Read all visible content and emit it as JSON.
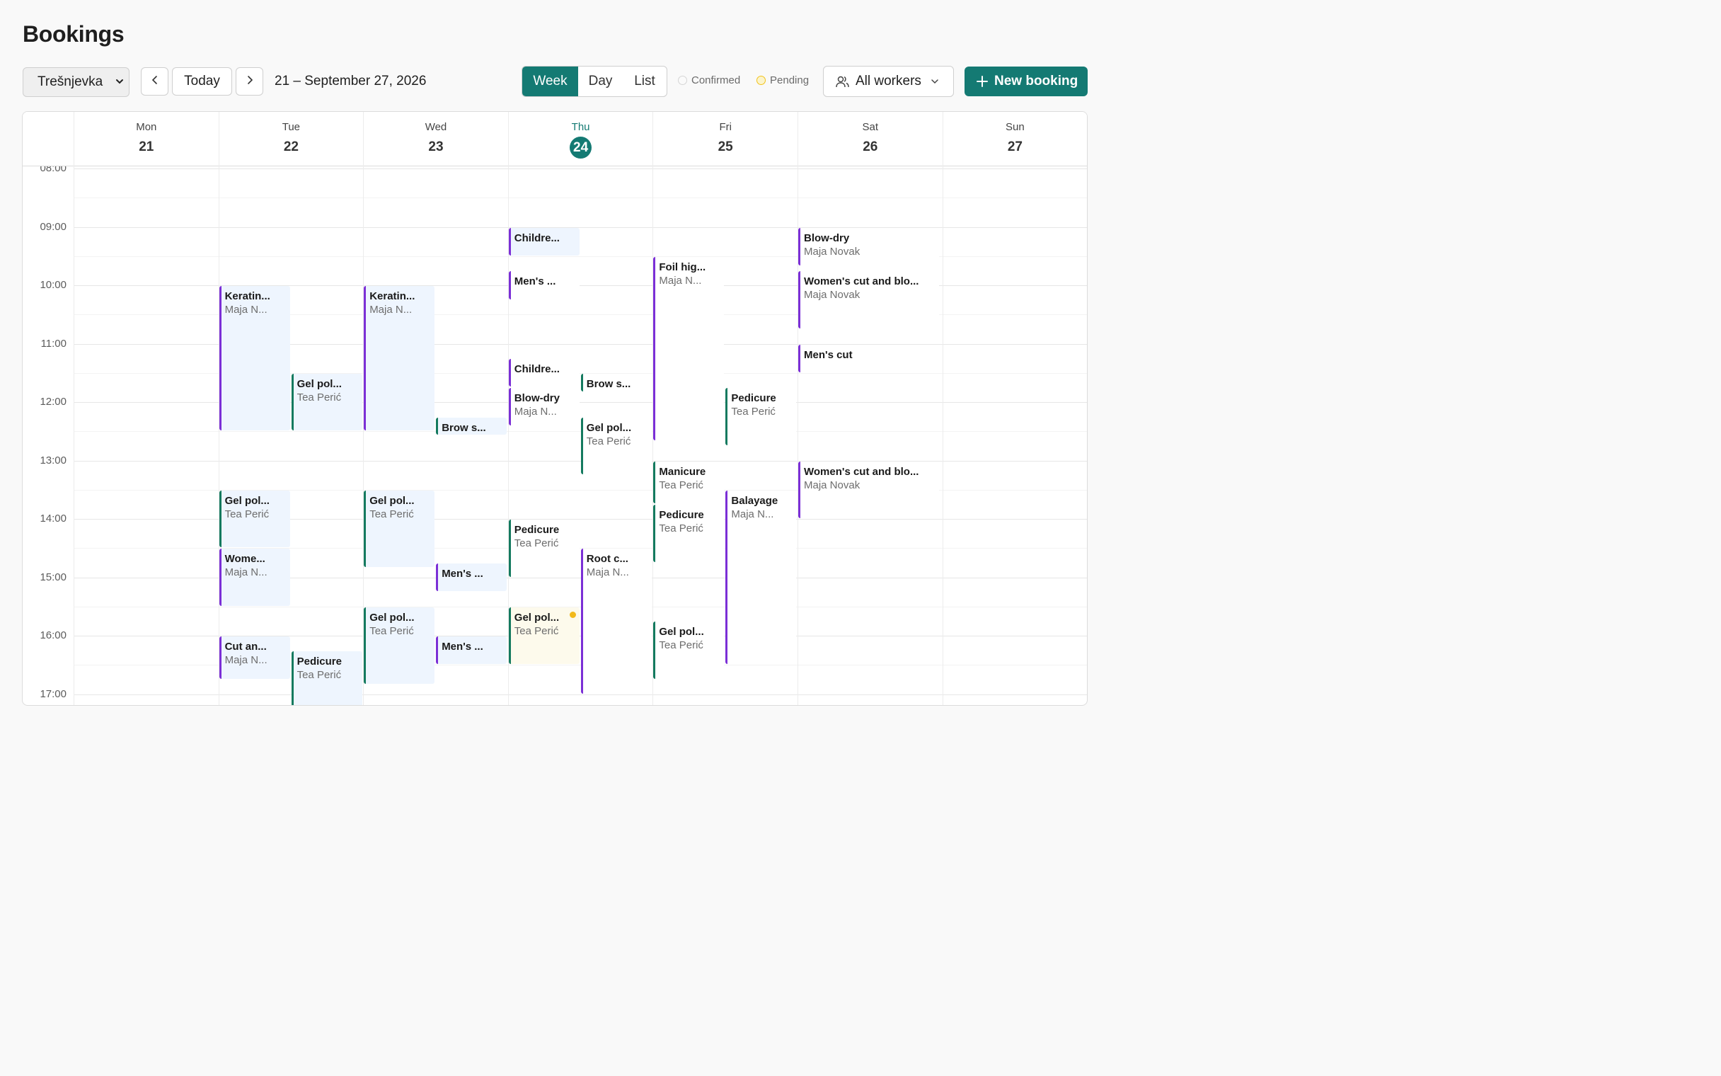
{
  "page": {
    "title": "Bookings"
  },
  "toolbar": {
    "location": "Trešnjevka",
    "today_label": "Today",
    "date_range": "21 – September 27, 2026",
    "views": [
      "Week",
      "Day",
      "List"
    ],
    "active_view": "Week",
    "legend": {
      "confirmed": "Confirmed",
      "pending": "Pending"
    },
    "workers_label": "All workers",
    "new_booking_label": "New booking",
    "accent_color": "#147a73",
    "pending_color": "#f2b91b"
  },
  "calendar": {
    "days": [
      {
        "name": "Mon",
        "num": "21"
      },
      {
        "name": "Tue",
        "num": "22"
      },
      {
        "name": "Wed",
        "num": "23"
      },
      {
        "name": "Thu",
        "num": "24",
        "today": true
      },
      {
        "name": "Fri",
        "num": "25"
      },
      {
        "name": "Sat",
        "num": "26"
      },
      {
        "name": "Sun",
        "num": "27"
      }
    ],
    "hours": [
      "08:00",
      "09:00",
      "10:00",
      "11:00",
      "12:00",
      "13:00",
      "14:00",
      "15:00",
      "16:00",
      "17:00"
    ],
    "worker_colors": {
      "Maja Novak": "#7b2fd6",
      "Tea Perić": "#147a5f"
    },
    "events": [
      {
        "day": 1,
        "start": "10:00",
        "end": "12:30",
        "col": 0,
        "title": "Keratin...",
        "worker": "Maja N...",
        "type": "maja"
      },
      {
        "day": 1,
        "start": "11:30",
        "end": "12:30",
        "col": 1,
        "title": "Gel pol...",
        "worker": "Tea Perić",
        "type": "tea"
      },
      {
        "day": 1,
        "start": "13:30",
        "end": "14:30",
        "col": 0,
        "title": "Gel pol...",
        "worker": "Tea Perić",
        "type": "tea"
      },
      {
        "day": 1,
        "start": "14:30",
        "end": "15:30",
        "col": 0,
        "title": "Wome...",
        "worker": "Maja N...",
        "type": "maja"
      },
      {
        "day": 1,
        "start": "16:00",
        "end": "16:45",
        "col": 0,
        "title": "Cut an...",
        "worker": "Maja N...",
        "type": "maja"
      },
      {
        "day": 1,
        "start": "16:15",
        "end": "17:15",
        "col": 1,
        "title": "Pedicure",
        "worker": "Tea Perić",
        "type": "tea"
      },
      {
        "day": 2,
        "start": "10:00",
        "end": "12:30",
        "col": 0,
        "title": "Keratin...",
        "worker": "Maja N...",
        "type": "maja"
      },
      {
        "day": 2,
        "start": "12:15",
        "end": "12:30",
        "col": 1,
        "title": "Brow s...",
        "worker": "",
        "type": "tea"
      },
      {
        "day": 2,
        "start": "13:30",
        "end": "14:50",
        "col": 0,
        "title": "Gel pol...",
        "worker": "Tea Perić",
        "type": "tea"
      },
      {
        "day": 2,
        "start": "14:45",
        "end": "15:15",
        "col": 1,
        "title": "Men's ...",
        "worker": "",
        "type": "maja"
      },
      {
        "day": 2,
        "start": "15:30",
        "end": "16:50",
        "col": 0,
        "title": "Gel pol...",
        "worker": "Tea Perić",
        "type": "tea"
      },
      {
        "day": 2,
        "start": "16:00",
        "end": "16:30",
        "col": 1,
        "title": "Men's ...",
        "worker": "",
        "type": "maja"
      },
      {
        "day": 3,
        "start": "09:00",
        "end": "09:30",
        "col": 0,
        "title": "Childre...",
        "worker": "",
        "type": "maja"
      },
      {
        "day": 3,
        "start": "09:45",
        "end": "10:15",
        "col": 0,
        "title": "Men's ...",
        "worker": "",
        "type": "maja",
        "white": true
      },
      {
        "day": 3,
        "start": "11:15",
        "end": "11:45",
        "col": 0,
        "title": "Childre...",
        "worker": "",
        "type": "maja",
        "white": true
      },
      {
        "day": 3,
        "start": "11:30",
        "end": "11:50",
        "col": 1,
        "title": "Brow s...",
        "worker": "",
        "type": "tea",
        "white": true
      },
      {
        "day": 3,
        "start": "11:45",
        "end": "12:25",
        "col": 0,
        "title": "Blow-dry",
        "worker": "Maja N...",
        "type": "maja",
        "white": true
      },
      {
        "day": 3,
        "start": "12:15",
        "end": "13:15",
        "col": 1,
        "title": "Gel pol...",
        "worker": "Tea Perić",
        "type": "tea",
        "white": true
      },
      {
        "day": 3,
        "start": "14:00",
        "end": "15:00",
        "col": 0,
        "title": "Pedicure",
        "worker": "Tea Perić",
        "type": "tea",
        "white": true
      },
      {
        "day": 3,
        "start": "14:30",
        "end": "17:00",
        "col": 1,
        "title": "Root c...",
        "worker": "Maja N...",
        "type": "maja",
        "white": true
      },
      {
        "day": 3,
        "start": "15:30",
        "end": "16:30",
        "col": 0,
        "title": "Gel pol...",
        "worker": "Tea Perić",
        "type": "tea",
        "pending": true
      },
      {
        "day": 4,
        "start": "09:30",
        "end": "12:40",
        "col": 0,
        "title": "Foil hig...",
        "worker": "Maja N...",
        "type": "maja",
        "white": true
      },
      {
        "day": 4,
        "start": "11:45",
        "end": "12:45",
        "col": 1,
        "title": "Pedicure",
        "worker": "Tea Perić",
        "type": "tea",
        "white": true
      },
      {
        "day": 4,
        "start": "13:00",
        "end": "13:45",
        "col": 0,
        "title": "Manicure",
        "worker": "Tea Perić",
        "type": "tea",
        "white": true
      },
      {
        "day": 4,
        "start": "13:30",
        "end": "16:30",
        "col": 1,
        "title": "Balayage",
        "worker": "Maja N...",
        "type": "maja",
        "white": true
      },
      {
        "day": 4,
        "start": "13:45",
        "end": "14:45",
        "col": 0,
        "title": "Pedicure",
        "worker": "Tea Perić",
        "type": "tea",
        "white": true
      },
      {
        "day": 4,
        "start": "15:45",
        "end": "16:45",
        "col": 0,
        "title": "Gel pol...",
        "worker": "Tea Perić",
        "type": "tea",
        "white": true
      },
      {
        "day": 5,
        "start": "09:00",
        "end": "09:40",
        "col": 0,
        "title": "Blow-dry",
        "worker": "Maja Novak",
        "type": "maja",
        "white": true,
        "wide": true
      },
      {
        "day": 5,
        "start": "09:45",
        "end": "10:45",
        "col": 0,
        "title": "Women's cut and blo...",
        "worker": "Maja Novak",
        "type": "maja",
        "white": true,
        "wide": true
      },
      {
        "day": 5,
        "start": "11:00",
        "end": "11:30",
        "col": 0,
        "title": "Men's cut",
        "worker": "",
        "type": "maja",
        "white": true,
        "wide": true
      },
      {
        "day": 5,
        "start": "13:00",
        "end": "14:00",
        "col": 0,
        "title": "Women's cut and blo...",
        "worker": "Maja Novak",
        "type": "maja",
        "white": true,
        "wide": true
      }
    ]
  }
}
